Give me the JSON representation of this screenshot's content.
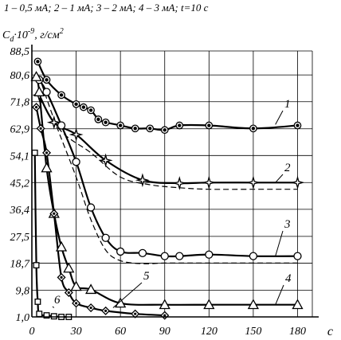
{
  "chart_data": {
    "type": "line",
    "title": "1 – 0,5 мА; 2 – 1 мА; 3 – 2 мА; 4 – 3 мА; t=10 с",
    "ylabel": "C",
    "ylabel_sub": "d",
    "ylabel_rest": "·10",
    "ylabel_exp": "-9",
    "ylabel_unit": ", г/см",
    "ylabel_unit_exp": "2",
    "xlabel": "с",
    "xlim": [
      0,
      190
    ],
    "ylim": [
      1.0,
      88.5
    ],
    "x_ticks": [
      "0",
      "30",
      "60",
      "90",
      "120",
      "150",
      "180"
    ],
    "x_tick_values": [
      0,
      30,
      60,
      90,
      120,
      150,
      180
    ],
    "y_ticks": [
      "88,5",
      "80,6",
      "71,8",
      "62,9",
      "54,1",
      "45,2",
      "36,4",
      "27,5",
      "18,7",
      "9,8",
      "1,0"
    ],
    "y_tick_values": [
      88.5,
      80.6,
      71.8,
      62.9,
      54.1,
      45.2,
      36.4,
      27.5,
      18.7,
      9.8,
      1.0
    ],
    "grid": true,
    "series": [
      {
        "name": "1",
        "marker": "circle-dot",
        "x": [
          4,
          10,
          20,
          30,
          35,
          40,
          45,
          50,
          60,
          70,
          80,
          90,
          100,
          120,
          150,
          180
        ],
        "y": [
          85,
          79,
          74,
          71,
          70,
          69,
          66,
          65,
          64,
          63,
          63,
          62.5,
          64,
          64,
          63,
          64
        ]
      },
      {
        "name": "2",
        "marker": "star",
        "x": [
          5,
          15,
          30,
          50,
          75,
          100,
          120,
          150,
          180
        ],
        "y": [
          74,
          65,
          61,
          52.5,
          46,
          45,
          45.2,
          45.2,
          45.2
        ]
      },
      {
        "name": "3",
        "marker": "circle",
        "x": [
          5,
          10,
          20,
          30,
          40,
          50,
          60,
          75,
          90,
          100,
          120,
          150,
          180
        ],
        "y": [
          79,
          75,
          64,
          52,
          37,
          27,
          22.5,
          22,
          21,
          21,
          21.5,
          21,
          21
        ]
      },
      {
        "name": "4",
        "marker": "triangle",
        "x": [
          3,
          5,
          10,
          15,
          20,
          25,
          30,
          40,
          60,
          90,
          120,
          150,
          180
        ],
        "y": [
          80,
          75,
          50,
          35,
          24,
          17,
          11,
          10,
          5.5,
          5,
          5,
          5,
          5
        ]
      },
      {
        "name": "5",
        "marker": "diamond",
        "x": [
          3,
          6,
          10,
          15,
          20,
          25,
          30,
          40,
          50,
          70,
          90
        ],
        "y": [
          70,
          63,
          55,
          35,
          14,
          9,
          5.5,
          4,
          3,
          2,
          1.5
        ]
      },
      {
        "name": "6",
        "marker": "square",
        "x": [
          2,
          3,
          4,
          5,
          10,
          15,
          20,
          25
        ],
        "y": [
          55,
          18,
          6,
          2,
          1.5,
          1.2,
          1.0,
          1.0
        ]
      }
    ],
    "dashed_curves": [
      {
        "of": "2",
        "x": [
          5,
          20,
          40,
          60,
          80,
          100,
          120,
          150,
          180
        ],
        "y": [
          73,
          62,
          55,
          47,
          44.5,
          43.5,
          43,
          43,
          43
        ]
      },
      {
        "of": "3",
        "x": [
          5,
          15,
          30,
          40,
          50,
          60,
          75,
          90,
          120,
          150,
          180
        ],
        "y": [
          80,
          66,
          47,
          33,
          23,
          19.5,
          18.5,
          18.7,
          18.7,
          18.7,
          18.7
        ]
      }
    ],
    "curve_labels": [
      "1",
      "2",
      "3",
      "4",
      "5",
      "6"
    ]
  }
}
